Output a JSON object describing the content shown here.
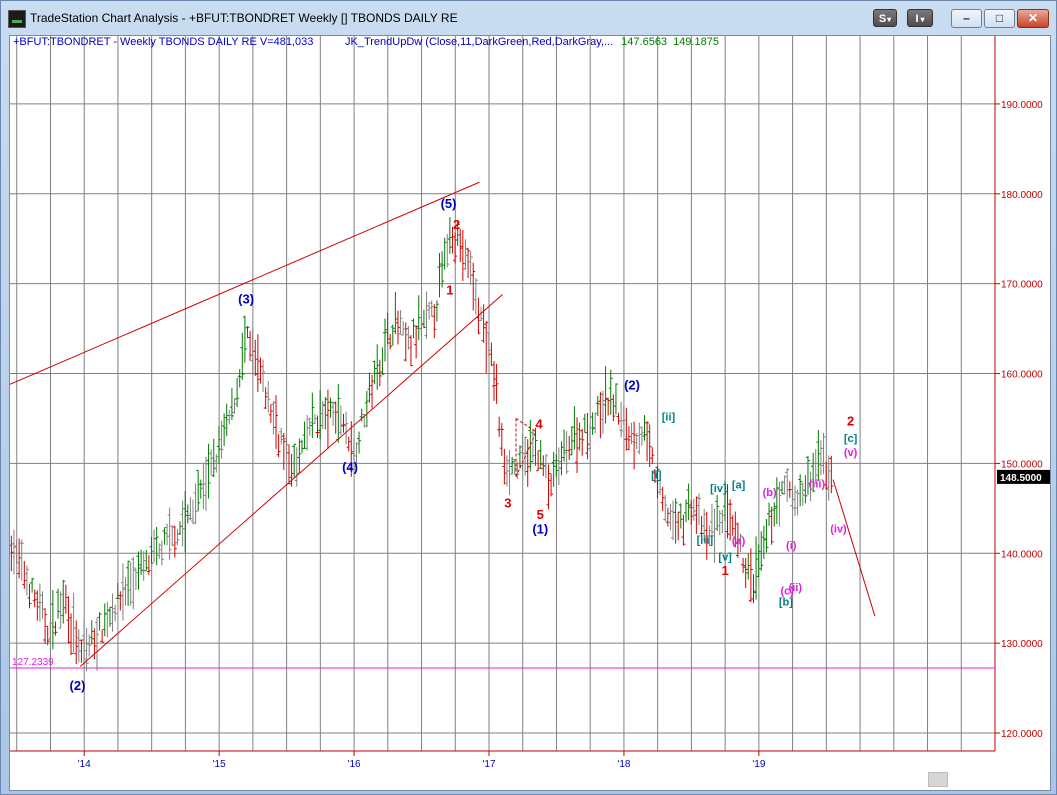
{
  "window": {
    "title": "TradeStation Chart Analysis - +BFUT:TBONDRET Weekly [] TBONDS DAILY RE",
    "s_button": "S",
    "i_button": "I",
    "dropdown_glyph": "▾",
    "minimize_glyph": "–",
    "maximize_glyph": "□",
    "close_glyph": "✕"
  },
  "header": {
    "symbol_info": "+BFUT:TBONDRET - Weekly  TBONDS DAILY RE   V=481,033",
    "indicator": "JK_TrendUpDw  (Close,11,DarkGreen,Red,DarkGray,...",
    "indicator_value1": "147.6563",
    "indicator_value2": "149.1875"
  },
  "colors": {
    "up_bar": "#007a00",
    "down_bar": "#d00000",
    "neutral_bar": "#808080",
    "grid": "#808080",
    "axis": "#c00000",
    "trendline": "#d00000",
    "low_line": "#e020e0",
    "label_blue": "#0000c0",
    "label_red": "#e00000",
    "label_teal": "#008080",
    "label_magenta": "#e020e0"
  },
  "chart_data": {
    "type": "bar",
    "title": "+BFUT:TBONDRET Weekly",
    "ylim": [
      118,
      196
    ],
    "y_ticks": [
      "120.0000",
      "130.0000",
      "140.0000",
      "150.0000",
      "160.0000",
      "170.0000",
      "180.0000",
      "190.0000"
    ],
    "y_tick_values": [
      120,
      130,
      140,
      150,
      160,
      170,
      180,
      190
    ],
    "x_ticks": [
      "'14",
      "'15",
      "'16",
      "'17",
      "'18",
      "'19"
    ],
    "x_tick_values": [
      2014.0,
      2015.0,
      2016.0,
      2017.0,
      2018.0,
      2019.0
    ],
    "xlim": [
      2013.45,
      2020.75
    ],
    "last_price": "148.5000",
    "last_price_value": 148.5,
    "low_marker": "127.2339",
    "low_marker_value": 127.2339,
    "price_path": [
      [
        2013.46,
        141
      ],
      [
        2013.6,
        136
      ],
      [
        2013.75,
        131
      ],
      [
        2013.85,
        135.5
      ],
      [
        2013.97,
        128.5
      ],
      [
        2014.1,
        131
      ],
      [
        2014.3,
        136
      ],
      [
        2014.45,
        138.5
      ],
      [
        2014.6,
        141
      ],
      [
        2014.75,
        143.5
      ],
      [
        2014.95,
        149.5
      ],
      [
        2015.1,
        156
      ],
      [
        2015.2,
        164
      ],
      [
        2015.3,
        160
      ],
      [
        2015.45,
        153
      ],
      [
        2015.55,
        149
      ],
      [
        2015.7,
        155
      ],
      [
        2015.9,
        155.5
      ],
      [
        2016.0,
        151
      ],
      [
        2016.1,
        157
      ],
      [
        2016.2,
        162
      ],
      [
        2016.3,
        166
      ],
      [
        2016.4,
        163
      ],
      [
        2016.5,
        165
      ],
      [
        2016.6,
        167
      ],
      [
        2016.72,
        176.5
      ],
      [
        2016.85,
        172
      ],
      [
        2016.95,
        165.5
      ],
      [
        2017.05,
        159
      ],
      [
        2017.1,
        150.5
      ],
      [
        2017.2,
        149.5
      ],
      [
        2017.35,
        152
      ],
      [
        2017.45,
        147.5
      ],
      [
        2017.6,
        152.5
      ],
      [
        2017.75,
        154
      ],
      [
        2017.9,
        157.5
      ],
      [
        2018.05,
        153
      ],
      [
        2018.15,
        153.5
      ],
      [
        2018.3,
        145
      ],
      [
        2018.4,
        143
      ],
      [
        2018.5,
        145.5
      ],
      [
        2018.62,
        141.5
      ],
      [
        2018.75,
        145
      ],
      [
        2018.85,
        140.5
      ],
      [
        2018.95,
        136.5
      ],
      [
        2019.0,
        138.5
      ],
      [
        2019.1,
        144.5
      ],
      [
        2019.2,
        147.5
      ],
      [
        2019.3,
        146
      ],
      [
        2019.38,
        148
      ],
      [
        2019.45,
        150.5
      ],
      [
        2019.55,
        148.5
      ]
    ],
    "trendlines": [
      {
        "x1": 2013.45,
        "y1": 158.8,
        "x2": 2016.93,
        "y2": 181.3
      },
      {
        "x1": 2013.97,
        "y1": 127.4,
        "x2": 2017.1,
        "y2": 168.8
      },
      {
        "x1": 2019.55,
        "y1": 148.2,
        "x2": 2019.86,
        "y2": 133
      }
    ],
    "dashed_lines": [
      {
        "x1": 2017.2,
        "y1": 155,
        "x2": 2017.35,
        "y2": 153.5
      },
      {
        "x1": 2017.2,
        "y1": 155,
        "x2": 2017.2,
        "y2": 148.5
      },
      {
        "x1": 2017.2,
        "y1": 148.5,
        "x2": 2017.35,
        "y2": 153.5
      }
    ],
    "wave_labels": [
      {
        "text": "(2)",
        "x": 2013.95,
        "y": 124.8,
        "style": "blue"
      },
      {
        "text": "(3)",
        "x": 2015.2,
        "y": 167.8,
        "style": "blue"
      },
      {
        "text": "(4)",
        "x": 2015.97,
        "y": 149.1,
        "style": "blue"
      },
      {
        "text": "(5)",
        "x": 2016.7,
        "y": 178.4,
        "style": "blue"
      },
      {
        "text": "2",
        "x": 2016.76,
        "y": 176.1,
        "style": "red"
      },
      {
        "text": "1",
        "x": 2016.71,
        "y": 168.8,
        "style": "red"
      },
      {
        "text": "4",
        "x": 2017.37,
        "y": 153.9,
        "style": "red"
      },
      {
        "text": "3",
        "x": 2017.14,
        "y": 145.1,
        "style": "red"
      },
      {
        "text": "5",
        "x": 2017.38,
        "y": 143.8,
        "style": "red"
      },
      {
        "text": "(1)",
        "x": 2017.38,
        "y": 142.2,
        "style": "blue"
      },
      {
        "text": "(2)",
        "x": 2018.06,
        "y": 158.2,
        "style": "blue"
      },
      {
        "text": "[ii]",
        "x": 2018.33,
        "y": 154.8,
        "style": "teal"
      },
      {
        "text": "[i]",
        "x": 2018.24,
        "y": 148.3,
        "style": "teal"
      },
      {
        "text": "[iv]",
        "x": 2018.7,
        "y": 146.8,
        "style": "teal"
      },
      {
        "text": "[a]",
        "x": 2018.85,
        "y": 147.2,
        "style": "teal"
      },
      {
        "text": "[iii]",
        "x": 2018.6,
        "y": 141.1,
        "style": "teal"
      },
      {
        "text": "(b)",
        "x": 2019.08,
        "y": 146.4,
        "style": "magenta"
      },
      {
        "text": "(a)",
        "x": 2018.85,
        "y": 141.0,
        "style": "magenta"
      },
      {
        "text": "[v]",
        "x": 2018.75,
        "y": 139.2,
        "style": "teal"
      },
      {
        "text": "1",
        "x": 2018.75,
        "y": 137.6,
        "style": "red"
      },
      {
        "text": "(i)",
        "x": 2019.24,
        "y": 140.5,
        "style": "magenta"
      },
      {
        "text": "(iii)",
        "x": 2019.43,
        "y": 147.3,
        "style": "magenta"
      },
      {
        "text": "(iv)",
        "x": 2019.59,
        "y": 142.3,
        "style": "magenta"
      },
      {
        "text": "2",
        "x": 2019.68,
        "y": 154.2,
        "style": "red"
      },
      {
        "text": "[c]",
        "x": 2019.68,
        "y": 152.4,
        "style": "teal"
      },
      {
        "text": "(v)",
        "x": 2019.68,
        "y": 150.8,
        "style": "magenta"
      },
      {
        "text": "(ii)",
        "x": 2019.27,
        "y": 135.8,
        "style": "magenta"
      },
      {
        "text": "(c)",
        "x": 2019.21,
        "y": 135.4,
        "style": "magenta"
      },
      {
        "text": "[b]",
        "x": 2019.2,
        "y": 134.2,
        "style": "teal"
      }
    ]
  }
}
